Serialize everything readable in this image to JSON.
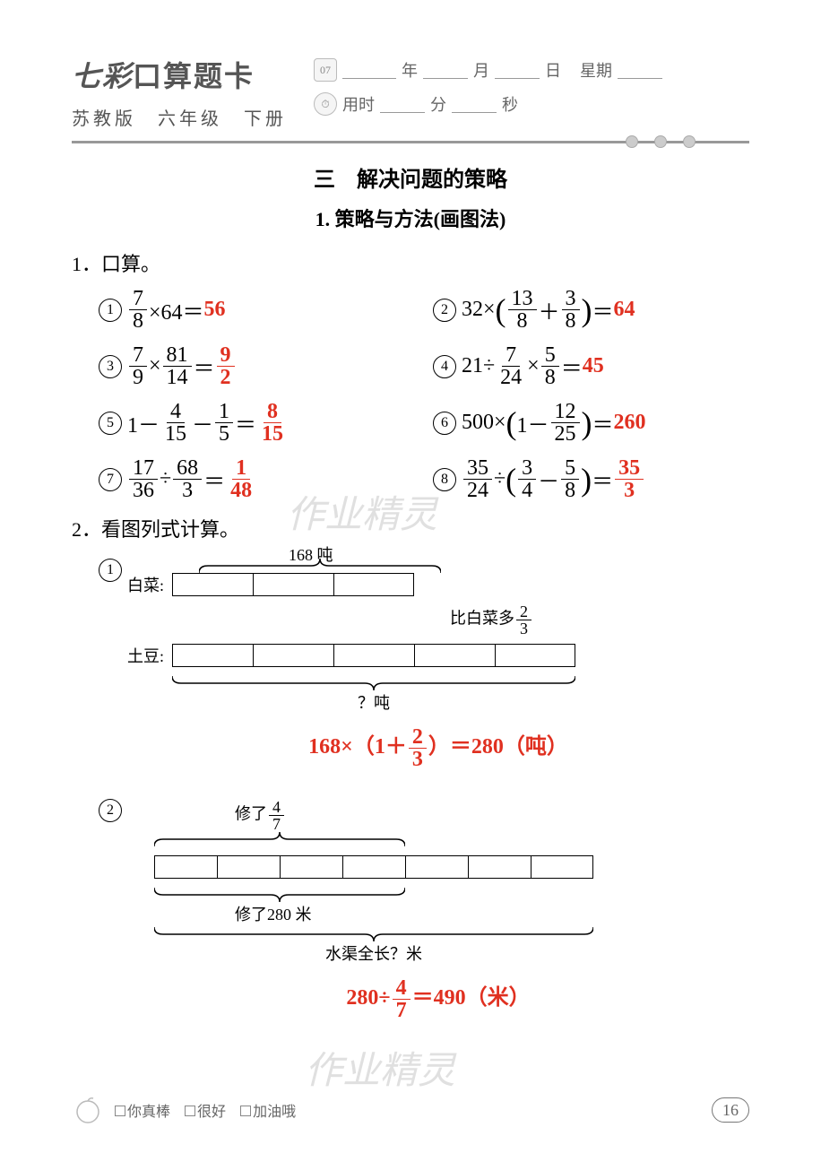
{
  "header": {
    "title_prefix": "七彩",
    "title_main": "口算题卡",
    "subtitle": "苏教版　六年级　下册",
    "cal_text": "07",
    "date_labels": {
      "year": "年",
      "month": "月",
      "day": "日",
      "weekday": "星期"
    },
    "time_labels": {
      "label": "用时",
      "min": "分",
      "sec": "秒"
    }
  },
  "chapter": "三　解决问题的策略",
  "section": "1. 策略与方法(画图法)",
  "q1": {
    "title": "1．口算。",
    "items": [
      {
        "n": "1",
        "expr_html": "<span class='frac'><span class='num'>7</span><span class='den'>8</span></span> ×64＝",
        "ans_html": "56"
      },
      {
        "n": "2",
        "expr_html": "32× <span class='paren-l'>(</span><span class='frac'><span class='num'>13</span><span class='den'>8</span></span>＋<span class='frac'><span class='num'>3</span><span class='den'>8</span></span><span class='paren-r'>)</span> ＝",
        "ans_html": "64"
      },
      {
        "n": "3",
        "expr_html": "<span class='frac'><span class='num'>7</span><span class='den'>9</span></span> × <span class='frac'><span class='num'>81</span><span class='den'>14</span></span>＝",
        "ans_html": "<span class='frac'><span class='num'>9</span><span class='den'>2</span></span>"
      },
      {
        "n": "4",
        "expr_html": "21÷ <span class='frac'><span class='num'>7</span><span class='den'>24</span></span> × <span class='frac'><span class='num'>5</span><span class='den'>8</span></span>＝",
        "ans_html": "45"
      },
      {
        "n": "5",
        "expr_html": "1－ <span class='frac'><span class='num'>4</span><span class='den'>15</span></span> － <span class='frac'><span class='num'>1</span><span class='den'>5</span></span>＝",
        "ans_html": "<span class='frac'><span class='num'>8</span><span class='den'>15</span></span>"
      },
      {
        "n": "6",
        "expr_html": "500× <span class='paren-l'>(</span>1－ <span class='frac'><span class='num'>12</span><span class='den'>25</span></span><span class='paren-r'>)</span> ＝",
        "ans_html": "260"
      },
      {
        "n": "7",
        "expr_html": "<span class='frac'><span class='num'>17</span><span class='den'>36</span></span> ÷ <span class='frac'><span class='num'>68</span><span class='den'>3</span></span>＝",
        "ans_html": "<span class='frac'><span class='num'>1</span><span class='den'>48</span></span>"
      },
      {
        "n": "8",
        "expr_html": "<span class='frac'><span class='num'>35</span><span class='den'>24</span></span> ÷ <span class='paren-l'>(</span><span class='frac'><span class='num'>3</span><span class='den'>4</span></span>－<span class='frac'><span class='num'>5</span><span class='den'>8</span></span><span class='paren-r'>)</span> ＝",
        "ans_html": "<span class='frac'><span class='num'>35</span><span class='den'>3</span></span>"
      }
    ]
  },
  "q2": {
    "title": "2．看图列式计算。",
    "d1": {
      "num": "1",
      "top_label": "168 吨",
      "row1_label": "白菜:",
      "row1_segs": 3,
      "row1_seg_w": 90,
      "more_label_html": "比白菜多<span class='frac'><span class='num'>2</span><span class='den'>3</span></span>",
      "row2_label": "土豆:",
      "row2_segs": 5,
      "row2_seg_w": 90,
      "bottom_label": "？吨",
      "answer_html": "168×（1＋<span class='frac'><span class='num'>2</span><span class='den'>3</span></span>）＝280（吨）"
    },
    "d2": {
      "num": "2",
      "top_label_html": "修了<span class='frac'><span class='num'>4</span><span class='den'>7</span></span>",
      "top_brace_segs": 4,
      "segs": 7,
      "seg_w": 70,
      "mid_label": "修了280 米",
      "bottom_label": "水渠全长？米",
      "answer_html": "280÷<span class='frac'><span class='num'>4</span><span class='den'>7</span></span>＝490（米）"
    }
  },
  "footer": {
    "opts": [
      "你真棒",
      "很好",
      "加油哦"
    ],
    "page": "16"
  },
  "watermark": "作业精灵",
  "colors": {
    "answer": "#e03020",
    "text": "#000000",
    "gray": "#888888"
  }
}
